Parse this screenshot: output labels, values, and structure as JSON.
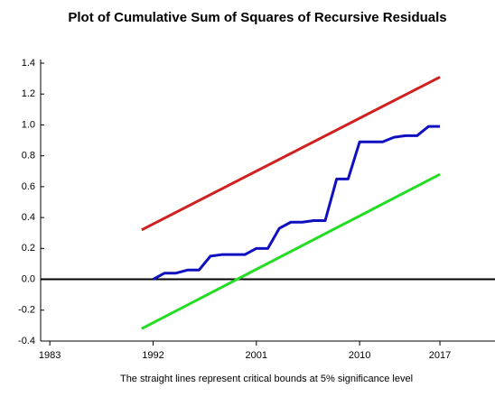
{
  "chart_data": {
    "type": "line",
    "title": "Plot of Cumulative Sum of Squares of Recursive Residuals",
    "note": "The straight lines represent critical bounds at 5% significance level",
    "xlim": [
      1982.2,
      2021.8
    ],
    "xticks": [
      1983,
      1992,
      2001,
      2010,
      2017
    ],
    "ylim": [
      -0.4,
      1.4
    ],
    "yticks": [
      1.4,
      1.2,
      {
        "value": 1,
        "label": "1.0"
      },
      0.8,
      0.6,
      0.4,
      0.2,
      {
        "value": 0,
        "label": "0.0"
      },
      -0.2,
      -0.4
    ],
    "hline": 0,
    "series": [
      {
        "color": "#d02020",
        "x": [
          1991,
          2017
        ],
        "values": [
          0.32,
          1.31
        ]
      },
      {
        "color": "#22dd22",
        "x": [
          1991,
          2017
        ],
        "values": [
          -0.32,
          0.68
        ]
      },
      {
        "color": "#1010c0",
        "x": [
          1992,
          1993,
          1994,
          1995,
          1996,
          1997,
          1998,
          1999,
          2000,
          2001,
          2002,
          2003,
          2004,
          2005,
          2006,
          2007,
          2008,
          2009,
          2010,
          2011,
          2012,
          2013,
          2014,
          2015,
          2016,
          2017
        ],
        "values": [
          0.0,
          0.04,
          0.04,
          0.06,
          0.06,
          0.15,
          0.16,
          0.16,
          0.16,
          0.2,
          0.2,
          0.33,
          0.37,
          0.37,
          0.38,
          0.38,
          0.65,
          0.65,
          0.89,
          0.89,
          0.89,
          0.92,
          0.93,
          0.93,
          0.99,
          0.99
        ]
      }
    ]
  }
}
